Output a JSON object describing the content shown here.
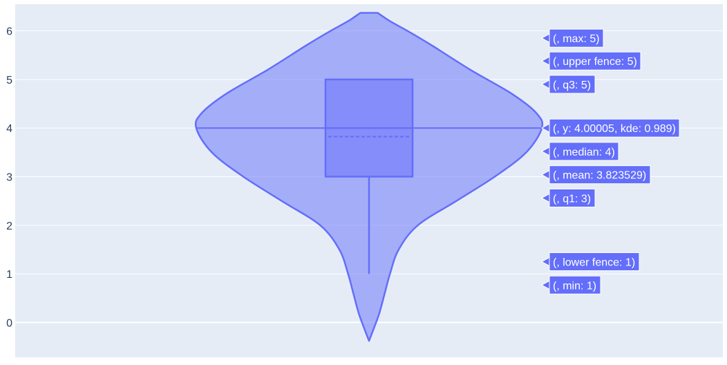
{
  "chart_data": {
    "type": "violin",
    "orientation": "vertical",
    "grid": true,
    "plot_background": "#E5ECF6",
    "series_color": "#636EFA",
    "y_axis": {
      "range": [
        -0.72,
        6.55
      ],
      "tick_values": [
        0,
        1,
        2,
        3,
        4,
        5,
        6
      ],
      "tick_labels": [
        "0",
        "1",
        "2",
        "3",
        "4",
        "5",
        "6"
      ]
    },
    "violin": {
      "name": "",
      "box_visible": true,
      "meanline_visible": true,
      "kde_span": [
        -0.38,
        6.37
      ],
      "kde_peak_y": 4.00005,
      "kde_profile": [
        [
          -0.38,
          0.0
        ],
        [
          -0.1,
          0.03
        ],
        [
          0.2,
          0.06
        ],
        [
          0.6,
          0.09
        ],
        [
          1.0,
          0.12
        ],
        [
          1.5,
          0.17
        ],
        [
          2.0,
          0.28
        ],
        [
          2.5,
          0.5
        ],
        [
          3.0,
          0.72
        ],
        [
          3.5,
          0.9
        ],
        [
          4.0,
          0.989
        ],
        [
          4.3,
          0.96
        ],
        [
          4.7,
          0.82
        ],
        [
          5.2,
          0.58
        ],
        [
          5.7,
          0.36
        ],
        [
          6.0,
          0.22
        ],
        [
          6.2,
          0.12
        ],
        [
          6.37,
          0.05
        ]
      ]
    },
    "stats": {
      "min": 1,
      "lower_fence": 1,
      "q1": 3,
      "median": 4,
      "mean": 3.823529,
      "q3": 5,
      "upper_fence": 5,
      "max": 5
    },
    "hover_labels": [
      {
        "key": "max",
        "text": "(, max: 5)",
        "y": 5.85
      },
      {
        "key": "upper_fence",
        "text": "(, upper fence: 5)",
        "y": 5.38
      },
      {
        "key": "q3",
        "text": "(, q3: 5)",
        "y": 4.9
      },
      {
        "key": "kde",
        "text": "(, y: 4.00005, kde: 0.989)",
        "y": 4.0
      },
      {
        "key": "median",
        "text": "(, median: 4)",
        "y": 3.52
      },
      {
        "key": "mean",
        "text": "(, mean: 3.823529)",
        "y": 3.04
      },
      {
        "key": "q1",
        "text": "(, q1: 3)",
        "y": 2.56
      },
      {
        "key": "lower_fence",
        "text": "(, lower fence: 1)",
        "y": 1.25
      },
      {
        "key": "min",
        "text": "(, min: 1)",
        "y": 0.77
      }
    ]
  }
}
